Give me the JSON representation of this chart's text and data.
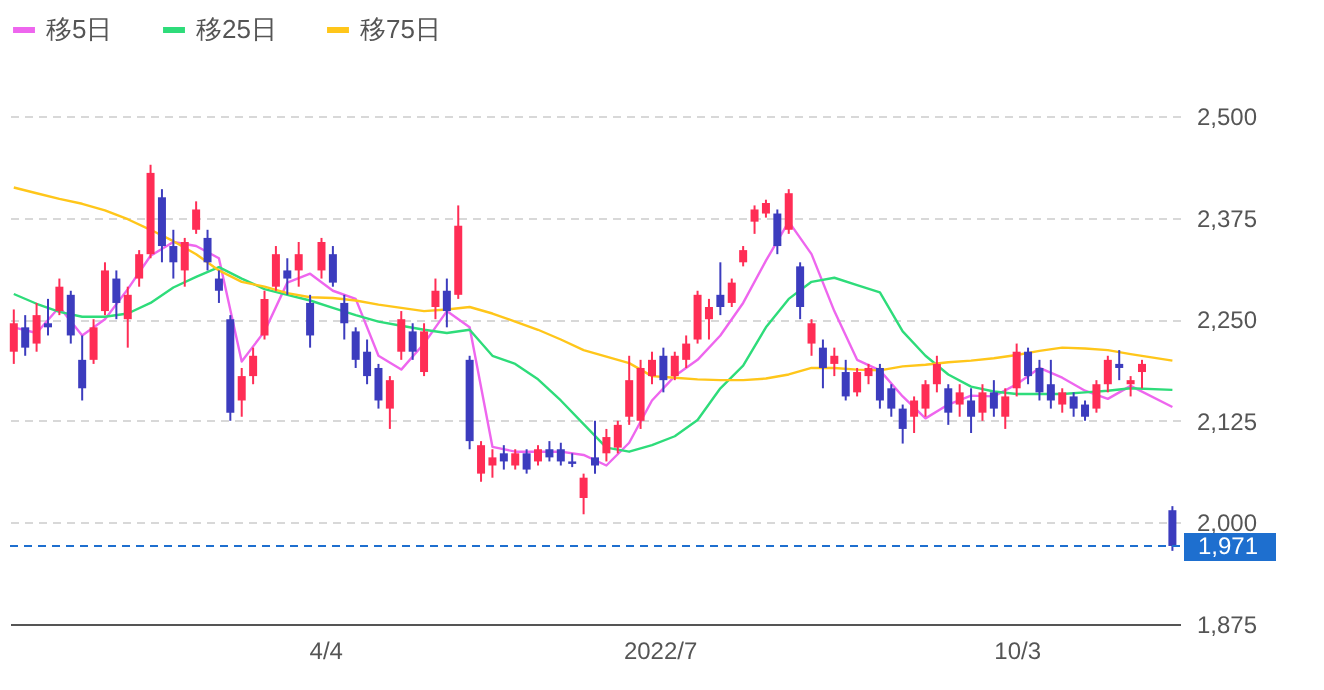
{
  "chart_data": {
    "type": "candlestick",
    "x": [
      "2022-01-12",
      "2022-01-15",
      "2022-01-18",
      "2022-01-21",
      "2022-01-24",
      "2022-01-27",
      "2022-01-30",
      "2022-02-02",
      "2022-02-05",
      "2022-02-08",
      "2022-02-11",
      "2022-02-14",
      "2022-02-17",
      "2022-02-20",
      "2022-02-23",
      "2022-02-26",
      "2022-03-01",
      "2022-03-04",
      "2022-03-07",
      "2022-03-10",
      "2022-03-13",
      "2022-03-16",
      "2022-03-19",
      "2022-03-22",
      "2022-03-25",
      "2022-03-28",
      "2022-03-31",
      "2022-04-03",
      "2022-04-06",
      "2022-04-09",
      "2022-04-12",
      "2022-04-15",
      "2022-04-18",
      "2022-04-21",
      "2022-04-24",
      "2022-04-27",
      "2022-04-30",
      "2022-05-03",
      "2022-05-06",
      "2022-05-09",
      "2022-05-12",
      "2022-05-15",
      "2022-05-18",
      "2022-05-21",
      "2022-05-24",
      "2022-05-27",
      "2022-05-30",
      "2022-06-02",
      "2022-06-05",
      "2022-06-08",
      "2022-06-11",
      "2022-06-14",
      "2022-06-17",
      "2022-06-20",
      "2022-06-23",
      "2022-06-26",
      "2022-06-29",
      "2022-07-02",
      "2022-07-05",
      "2022-07-08",
      "2022-07-11",
      "2022-07-14",
      "2022-07-17",
      "2022-07-20",
      "2022-07-23",
      "2022-07-26",
      "2022-07-29",
      "2022-08-01",
      "2022-08-04",
      "2022-08-07",
      "2022-08-10",
      "2022-08-13",
      "2022-08-16",
      "2022-08-19",
      "2022-08-22",
      "2022-08-25",
      "2022-08-28",
      "2022-08-31",
      "2022-09-03",
      "2022-09-06",
      "2022-09-09",
      "2022-09-12",
      "2022-09-15",
      "2022-09-18",
      "2022-09-21",
      "2022-09-24",
      "2022-09-27",
      "2022-09-30",
      "2022-10-03",
      "2022-10-06",
      "2022-10-09",
      "2022-10-12",
      "2022-10-15",
      "2022-10-18",
      "2022-10-21",
      "2022-10-24",
      "2022-10-27",
      "2022-10-30",
      "2022-11-02",
      "2022-11-05",
      "2022-11-13"
    ],
    "ohlc": [
      [
        2210,
        2262,
        2195,
        2245
      ],
      [
        2240,
        2255,
        2205,
        2215
      ],
      [
        2220,
        2270,
        2210,
        2255
      ],
      [
        2245,
        2275,
        2230,
        2240
      ],
      [
        2260,
        2300,
        2255,
        2290
      ],
      [
        2280,
        2285,
        2220,
        2230
      ],
      [
        2200,
        2230,
        2150,
        2165
      ],
      [
        2200,
        2250,
        2195,
        2240
      ],
      [
        2260,
        2320,
        2255,
        2310
      ],
      [
        2300,
        2310,
        2250,
        2270
      ],
      [
        2250,
        2290,
        2215,
        2280
      ],
      [
        2300,
        2335,
        2290,
        2330
      ],
      [
        2330,
        2440,
        2325,
        2430
      ],
      [
        2400,
        2410,
        2320,
        2340
      ],
      [
        2340,
        2360,
        2300,
        2320
      ],
      [
        2310,
        2350,
        2290,
        2345
      ],
      [
        2360,
        2395,
        2355,
        2385
      ],
      [
        2350,
        2360,
        2310,
        2320
      ],
      [
        2300,
        2310,
        2270,
        2285
      ],
      [
        2250,
        2255,
        2125,
        2135
      ],
      [
        2150,
        2190,
        2130,
        2180
      ],
      [
        2180,
        2215,
        2170,
        2205
      ],
      [
        2230,
        2285,
        2225,
        2275
      ],
      [
        2290,
        2340,
        2285,
        2330
      ],
      [
        2310,
        2325,
        2280,
        2300
      ],
      [
        2310,
        2345,
        2290,
        2330
      ],
      [
        2270,
        2280,
        2215,
        2230
      ],
      [
        2310,
        2350,
        2300,
        2345
      ],
      [
        2330,
        2340,
        2290,
        2295
      ],
      [
        2270,
        2280,
        2225,
        2245
      ],
      [
        2235,
        2240,
        2190,
        2200
      ],
      [
        2210,
        2225,
        2170,
        2180
      ],
      [
        2190,
        2195,
        2140,
        2150
      ],
      [
        2140,
        2180,
        2115,
        2175
      ],
      [
        2210,
        2260,
        2200,
        2250
      ],
      [
        2235,
        2245,
        2200,
        2210
      ],
      [
        2185,
        2245,
        2180,
        2235
      ],
      [
        2265,
        2300,
        2250,
        2285
      ],
      [
        2285,
        2300,
        2240,
        2260
      ],
      [
        2280,
        2390,
        2275,
        2365
      ],
      [
        2200,
        2205,
        2090,
        2100
      ],
      [
        2060,
        2100,
        2050,
        2095
      ],
      [
        2070,
        2090,
        2055,
        2080
      ],
      [
        2085,
        2095,
        2065,
        2075
      ],
      [
        2070,
        2090,
        2065,
        2085
      ],
      [
        2085,
        2090,
        2060,
        2065
      ],
      [
        2075,
        2095,
        2070,
        2090
      ],
      [
        2090,
        2100,
        2075,
        2080
      ],
      [
        2090,
        2098,
        2070,
        2075
      ],
      [
        2075,
        2085,
        2068,
        2072
      ],
      [
        2030,
        2060,
        2010,
        2055
      ],
      [
        2080,
        2125,
        2060,
        2070
      ],
      [
        2085,
        2115,
        2075,
        2105
      ],
      [
        2092,
        2125,
        2085,
        2120
      ],
      [
        2130,
        2205,
        2120,
        2175
      ],
      [
        2125,
        2200,
        2115,
        2190
      ],
      [
        2180,
        2210,
        2170,
        2200
      ],
      [
        2205,
        2215,
        2160,
        2175
      ],
      [
        2180,
        2210,
        2175,
        2205
      ],
      [
        2200,
        2230,
        2190,
        2220
      ],
      [
        2225,
        2285,
        2220,
        2280
      ],
      [
        2250,
        2275,
        2225,
        2265
      ],
      [
        2280,
        2320,
        2255,
        2265
      ],
      [
        2270,
        2300,
        2265,
        2295
      ],
      [
        2320,
        2340,
        2315,
        2335
      ],
      [
        2370,
        2390,
        2355,
        2385
      ],
      [
        2380,
        2397,
        2375,
        2393
      ],
      [
        2380,
        2385,
        2330,
        2340
      ],
      [
        2360,
        2410,
        2355,
        2405
      ],
      [
        2315,
        2320,
        2250,
        2265
      ],
      [
        2220,
        2250,
        2205,
        2245
      ],
      [
        2215,
        2225,
        2165,
        2190
      ],
      [
        2195,
        2215,
        2180,
        2205
      ],
      [
        2185,
        2200,
        2150,
        2155
      ],
      [
        2160,
        2190,
        2155,
        2185
      ],
      [
        2180,
        2195,
        2170,
        2190
      ],
      [
        2190,
        2195,
        2140,
        2150
      ],
      [
        2165,
        2170,
        2130,
        2140
      ],
      [
        2140,
        2145,
        2097,
        2115
      ],
      [
        2130,
        2155,
        2110,
        2150
      ],
      [
        2140,
        2175,
        2130,
        2170
      ],
      [
        2170,
        2205,
        2160,
        2195
      ],
      [
        2165,
        2170,
        2120,
        2135
      ],
      [
        2145,
        2170,
        2130,
        2160
      ],
      [
        2150,
        2165,
        2110,
        2130
      ],
      [
        2135,
        2170,
        2125,
        2160
      ],
      [
        2160,
        2175,
        2130,
        2140
      ],
      [
        2130,
        2165,
        2115,
        2155
      ],
      [
        2165,
        2220,
        2155,
        2210
      ],
      [
        2210,
        2215,
        2170,
        2180
      ],
      [
        2190,
        2200,
        2150,
        2160
      ],
      [
        2170,
        2200,
        2140,
        2150
      ],
      [
        2145,
        2165,
        2135,
        2160
      ],
      [
        2155,
        2160,
        2130,
        2140
      ],
      [
        2145,
        2150,
        2125,
        2130
      ],
      [
        2140,
        2175,
        2135,
        2170
      ],
      [
        2170,
        2205,
        2160,
        2200
      ],
      [
        2195,
        2212,
        2175,
        2190
      ],
      [
        2170,
        2180,
        2155,
        2175
      ],
      [
        2185,
        2200,
        2165,
        2195
      ],
      [
        2015,
        2020,
        1965,
        1971
      ]
    ],
    "colors": [
      "#ff2d55",
      "#3c3cbe",
      "#ff2d55",
      "#3c3cbe",
      "#ff2d55",
      "#3c3cbe",
      "#3c3cbe",
      "#ff2d55",
      "#ff2d55",
      "#3c3cbe",
      "#ff2d55",
      "#ff2d55",
      "#ff2d55",
      "#3c3cbe",
      "#3c3cbe",
      "#ff2d55",
      "#ff2d55",
      "#3c3cbe",
      "#3c3cbe",
      "#3c3cbe",
      "#ff2d55",
      "#ff2d55",
      "#ff2d55",
      "#ff2d55",
      "#3c3cbe",
      "#ff2d55",
      "#3c3cbe",
      "#ff2d55",
      "#3c3cbe",
      "#3c3cbe",
      "#3c3cbe",
      "#3c3cbe",
      "#3c3cbe",
      "#ff2d55",
      "#ff2d55",
      "#3c3cbe",
      "#ff2d55",
      "#ff2d55",
      "#3c3cbe",
      "#ff2d55",
      "#3c3cbe",
      "#ff2d55",
      "#ff2d55",
      "#3c3cbe",
      "#ff2d55",
      "#3c3cbe",
      "#ff2d55",
      "#3c3cbe",
      "#3c3cbe",
      "#3c3cbe",
      "#ff2d55",
      "#3c3cbe",
      "#ff2d55",
      "#ff2d55",
      "#ff2d55",
      "#ff2d55",
      "#ff2d55",
      "#3c3cbe",
      "#ff2d55",
      "#ff2d55",
      "#ff2d55",
      "#ff2d55",
      "#3c3cbe",
      "#ff2d55",
      "#ff2d55",
      "#ff2d55",
      "#ff2d55",
      "#3c3cbe",
      "#ff2d55",
      "#3c3cbe",
      "#ff2d55",
      "#3c3cbe",
      "#ff2d55",
      "#3c3cbe",
      "#ff2d55",
      "#ff2d55",
      "#3c3cbe",
      "#3c3cbe",
      "#3c3cbe",
      "#ff2d55",
      "#ff2d55",
      "#ff2d55",
      "#3c3cbe",
      "#ff2d55",
      "#3c3cbe",
      "#ff2d55",
      "#3c3cbe",
      "#ff2d55",
      "#ff2d55",
      "#3c3cbe",
      "#3c3cbe",
      "#3c3cbe",
      "#ff2d55",
      "#3c3cbe",
      "#3c3cbe",
      "#ff2d55",
      "#ff2d55",
      "#3c3cbe",
      "#ff2d55",
      "#ff2d55",
      "#3c3cbe"
    ],
    "series": [
      {
        "name": "移5日",
        "type": "line",
        "color": "#ee66ee",
        "x": [
          "2022-01-12",
          "2022-01-18",
          "2022-01-24",
          "2022-01-30",
          "2022-02-05",
          "2022-02-11",
          "2022-02-17",
          "2022-02-23",
          "2022-03-01",
          "2022-03-07",
          "2022-03-13",
          "2022-03-19",
          "2022-03-25",
          "2022-03-31",
          "2022-04-06",
          "2022-04-12",
          "2022-04-18",
          "2022-04-24",
          "2022-04-30",
          "2022-05-06",
          "2022-05-12",
          "2022-05-18",
          "2022-05-24",
          "2022-05-30",
          "2022-06-05",
          "2022-06-11",
          "2022-06-17",
          "2022-06-23",
          "2022-06-29",
          "2022-07-05",
          "2022-07-11",
          "2022-07-17",
          "2022-07-23",
          "2022-07-29",
          "2022-08-04",
          "2022-08-10",
          "2022-08-16",
          "2022-08-22",
          "2022-08-28",
          "2022-09-03",
          "2022-09-09",
          "2022-09-15",
          "2022-09-21",
          "2022-09-27",
          "2022-10-03",
          "2022-10-09",
          "2022-10-15",
          "2022-10-21",
          "2022-10-27",
          "2022-11-02",
          "2022-11-13"
        ],
        "values": [
          2240,
          2233,
          2265,
          2230,
          2250,
          2287,
          2328,
          2345,
          2340,
          2325,
          2198,
          2235,
          2295,
          2306,
          2285,
          2275,
          2205,
          2188,
          2220,
          2260,
          2240,
          2093,
          2087,
          2087,
          2087,
          2083,
          2070,
          2098,
          2150,
          2180,
          2200,
          2230,
          2270,
          2322,
          2370,
          2330,
          2260,
          2200,
          2187,
          2155,
          2128,
          2145,
          2156,
          2155,
          2170,
          2190,
          2178,
          2162,
          2152,
          2168,
          2142
        ]
      },
      {
        "name": "移25日",
        "type": "line",
        "color": "#2edc7a",
        "x": [
          "2022-01-12",
          "2022-01-18",
          "2022-01-24",
          "2022-01-30",
          "2022-02-05",
          "2022-02-11",
          "2022-02-17",
          "2022-02-23",
          "2022-03-01",
          "2022-03-07",
          "2022-03-13",
          "2022-03-19",
          "2022-03-25",
          "2022-03-31",
          "2022-04-06",
          "2022-04-12",
          "2022-04-18",
          "2022-04-24",
          "2022-04-30",
          "2022-05-06",
          "2022-05-12",
          "2022-05-18",
          "2022-05-24",
          "2022-05-30",
          "2022-06-05",
          "2022-06-11",
          "2022-06-17",
          "2022-06-23",
          "2022-06-29",
          "2022-07-05",
          "2022-07-11",
          "2022-07-17",
          "2022-07-23",
          "2022-07-29",
          "2022-08-04",
          "2022-08-10",
          "2022-08-16",
          "2022-08-22",
          "2022-08-28",
          "2022-09-03",
          "2022-09-09",
          "2022-09-15",
          "2022-09-21",
          "2022-09-27",
          "2022-10-03",
          "2022-10-09",
          "2022-10-15",
          "2022-10-21",
          "2022-10-27",
          "2022-11-02",
          "2022-11-13"
        ],
        "values": [
          2281,
          2269,
          2259,
          2253,
          2253,
          2257,
          2270,
          2289,
          2302,
          2314,
          2300,
          2287,
          2280,
          2273,
          2264,
          2255,
          2247,
          2242,
          2237,
          2233,
          2237,
          2205,
          2195,
          2176,
          2150,
          2121,
          2092,
          2087,
          2095,
          2106,
          2126,
          2165,
          2193,
          2240,
          2275,
          2296,
          2301,
          2292,
          2283,
          2235,
          2205,
          2182,
          2167,
          2161,
          2158,
          2158,
          2158,
          2160,
          2162,
          2165,
          2163
        ]
      },
      {
        "name": "移75日",
        "type": "line",
        "color": "#ffc61a",
        "x": [
          "2022-01-12",
          "2022-01-18",
          "2022-01-24",
          "2022-01-30",
          "2022-02-05",
          "2022-02-11",
          "2022-02-17",
          "2022-02-23",
          "2022-03-01",
          "2022-03-07",
          "2022-03-13",
          "2022-03-19",
          "2022-03-25",
          "2022-03-31",
          "2022-04-06",
          "2022-04-12",
          "2022-04-18",
          "2022-04-24",
          "2022-04-30",
          "2022-05-06",
          "2022-05-12",
          "2022-05-18",
          "2022-05-24",
          "2022-05-30",
          "2022-06-05",
          "2022-06-11",
          "2022-06-17",
          "2022-06-23",
          "2022-06-29",
          "2022-07-05",
          "2022-07-11",
          "2022-07-17",
          "2022-07-23",
          "2022-07-29",
          "2022-08-04",
          "2022-08-10",
          "2022-08-16",
          "2022-08-22",
          "2022-08-28",
          "2022-09-03",
          "2022-09-09",
          "2022-09-15",
          "2022-09-21",
          "2022-09-27",
          "2022-10-03",
          "2022-10-09",
          "2022-10-15",
          "2022-10-21",
          "2022-10-27",
          "2022-11-02",
          "2022-11-13"
        ],
        "values": [
          2412,
          2405,
          2398,
          2392,
          2384,
          2373,
          2360,
          2346,
          2330,
          2310,
          2296,
          2290,
          2282,
          2277,
          2276,
          2273,
          2268,
          2264,
          2260,
          2262,
          2265,
          2257,
          2247,
          2237,
          2225,
          2212,
          2204,
          2196,
          2180,
          2178,
          2176,
          2175,
          2175,
          2177,
          2182,
          2190,
          2190,
          2188,
          2187,
          2192,
          2194,
          2197,
          2199,
          2202,
          2206,
          2211,
          2215,
          2214,
          2212,
          2207,
          2199
        ]
      }
    ],
    "xlim": [
      "2022-01-11",
      "2022-11-15"
    ],
    "xticks": [
      {
        "value": "2022-04-04",
        "label": "4/4"
      },
      {
        "value": "2022-07-01",
        "label": "2022/7"
      },
      {
        "value": "2022-10-03",
        "label": "10/3"
      }
    ],
    "ylim": [
      1875,
      2500
    ],
    "yticks": [
      {
        "value": 1875,
        "label": "1,875"
      },
      {
        "value": 2000,
        "label": "2,000"
      },
      {
        "value": 2125,
        "label": "2,125"
      },
      {
        "value": 2250,
        "label": "2,250"
      },
      {
        "value": 2375,
        "label": "2,375"
      },
      {
        "value": 2500,
        "label": "2,500"
      }
    ],
    "grid": "y",
    "legend": "top left",
    "ref_lines": [
      {
        "axis": "y",
        "value": 1971,
        "label": "1,971",
        "color": "#1e6fcf",
        "line_style": "dashed"
      }
    ]
  }
}
